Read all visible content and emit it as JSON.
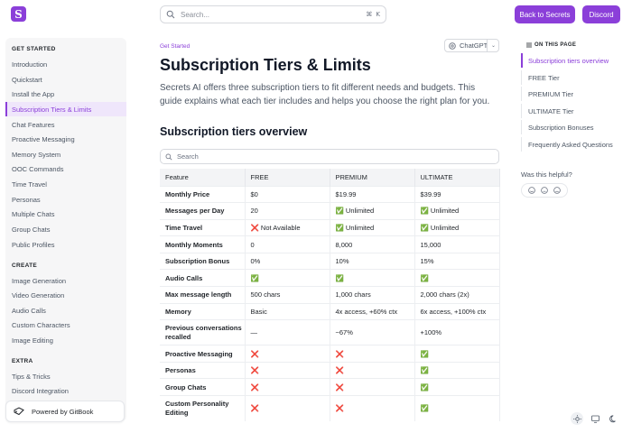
{
  "header": {
    "logo_letter": "S",
    "search_placeholder": "Search...",
    "shortcut_mod": "⌘",
    "shortcut_key": "K",
    "back_button": "Back to Secrets",
    "discord_button": "Discord",
    "accent_color": "#8b3fd9"
  },
  "sidebar": {
    "sections": [
      {
        "title": "GET STARTED",
        "items": [
          "Introduction",
          "Quickstart",
          "Install the App",
          "Subscription Tiers & Limits",
          "Chat Features",
          "Proactive Messaging",
          "Memory System",
          "OOC Commands",
          "Time Travel",
          "Personas",
          "Multiple Chats",
          "Group Chats",
          "Public Profiles"
        ]
      },
      {
        "title": "CREATE",
        "items": [
          "Image Generation",
          "Video Generation",
          "Audio Calls",
          "Custom Characters",
          "Image Editing"
        ]
      },
      {
        "title": "EXTRA",
        "items": [
          "Tips & Tricks",
          "Discord Integration"
        ]
      }
    ],
    "active_item": "Subscription Tiers & Limits",
    "powered_by": "Powered by GitBook"
  },
  "main": {
    "breadcrumb": "Get Started",
    "ai_button": "ChatGPT",
    "title": "Subscription Tiers & Limits",
    "lead": "Secrets AI offers three subscription tiers to fit different needs and budgets. This guide explains what each tier includes and helps you choose the right plan for you.",
    "section_title": "Subscription tiers overview",
    "table_search_placeholder": "Search",
    "table": {
      "headers": [
        "Feature",
        "FREE",
        "PREMIUM",
        "ULTIMATE"
      ],
      "rows": [
        [
          "Monthly Price",
          "$0",
          "$19.99",
          "$39.99"
        ],
        [
          "Messages per Day",
          "20",
          "✅ Unlimited",
          "✅ Unlimited"
        ],
        [
          "Time Travel",
          "❌ Not Available",
          "✅ Unlimited",
          "✅ Unlimited"
        ],
        [
          "Monthly Moments",
          "0",
          "8,000",
          "15,000"
        ],
        [
          "Subscription Bonus",
          "0%",
          "10%",
          "15%"
        ],
        [
          "Audio Calls",
          "✅",
          "✅",
          "✅"
        ],
        [
          "Max message length",
          "500 chars",
          "1,000 chars",
          "2,000 chars (2x)"
        ],
        [
          "Memory",
          "Basic",
          "4x access, +60% ctx",
          "6x access, +100% ctx"
        ],
        [
          "Previous conversations recalled",
          "—",
          "~67%",
          "+100%"
        ],
        [
          "Proactive Messaging",
          "❌",
          "❌",
          "✅"
        ],
        [
          "Personas",
          "❌",
          "❌",
          "✅"
        ],
        [
          "Group Chats",
          "❌",
          "❌",
          "✅"
        ],
        [
          "Custom Personality Editing",
          "❌",
          "❌",
          "✅"
        ]
      ]
    }
  },
  "toc": {
    "heading": "ON THIS PAGE",
    "items": [
      "Subscription tiers overview",
      "FREE Tier",
      "PREMIUM Tier",
      "ULTIMATE Tier",
      "Subscription Bonuses",
      "Frequently Asked Questions"
    ],
    "helpful_label": "Was this helpful?"
  },
  "icons": {
    "logo": "secrets-logo-icon",
    "search": "search-icon",
    "ai": "chatgpt-icon",
    "theme": [
      "sun-icon",
      "monitor-icon",
      "moon-icon"
    ],
    "feedback": [
      "smile-icon",
      "neutral-face-icon",
      "sad-face-icon"
    ]
  }
}
